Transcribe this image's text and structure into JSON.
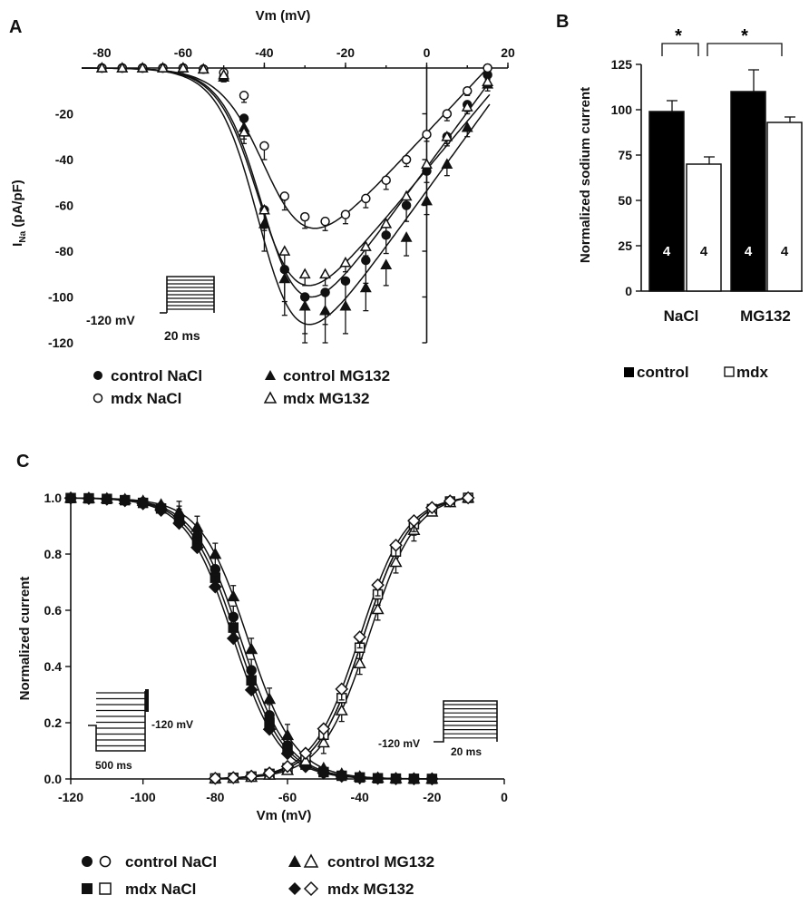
{
  "chart_data": [
    {
      "panel": "A",
      "type": "line",
      "xlabel": "Vm (mV)",
      "ylabel_main": "I",
      "ylabel_sub": "Na",
      "ylabel_unit": " (pA/pF)",
      "xlim": [
        -85,
        20
      ],
      "ylim": [
        -120,
        0
      ],
      "xticks": [
        -80,
        -60,
        -40,
        -20,
        0,
        20
      ],
      "yticks": [
        -20,
        -40,
        -60,
        -80,
        -100,
        -120
      ],
      "x": [
        -80,
        -75,
        -70,
        -65,
        -60,
        -55,
        -50,
        -45,
        -40,
        -35,
        -30,
        -25,
        -20,
        -15,
        -10,
        -5,
        0,
        5,
        10,
        15
      ],
      "series": [
        {
          "name": "control NaCl",
          "marker": "circle-filled",
          "values": [
            0,
            0,
            0,
            0,
            0,
            -0.5,
            -4,
            -22,
            -62,
            -88,
            -100,
            -98,
            -93,
            -84,
            -73,
            -60,
            -45,
            -30,
            -16,
            -3
          ],
          "err": [
            0,
            0,
            0,
            0,
            0,
            1,
            2,
            4,
            9,
            14,
            16,
            14,
            12,
            10,
            8,
            7,
            5,
            4,
            3,
            2
          ]
        },
        {
          "name": "mdx NaCl",
          "marker": "circle-open",
          "values": [
            0,
            0,
            0,
            0,
            0,
            -0.5,
            -2,
            -12,
            -34,
            -56,
            -65,
            -67,
            -64,
            -57,
            -49,
            -40,
            -29,
            -20,
            -10,
            0
          ],
          "err": [
            0,
            0,
            0,
            0,
            0,
            1,
            1,
            3,
            6,
            6,
            5,
            4,
            4,
            4,
            4,
            3,
            3,
            3,
            2,
            2
          ]
        },
        {
          "name": "control MG132",
          "marker": "triangle-filled",
          "values": [
            0,
            0,
            0,
            0,
            0,
            -0.5,
            -4,
            -26,
            -68,
            -92,
            -104,
            -106,
            -104,
            -96,
            -86,
            -74,
            -58,
            -42,
            -26,
            -7
          ],
          "err": [
            0,
            0,
            0,
            0,
            0,
            1,
            2,
            5,
            12,
            16,
            16,
            14,
            12,
            10,
            9,
            8,
            6,
            5,
            4,
            3
          ]
        },
        {
          "name": "mdx MG132",
          "marker": "triangle-open",
          "values": [
            0,
            0,
            0,
            0,
            0,
            -0.5,
            -3,
            -28,
            -62,
            -80,
            -90,
            -90,
            -85,
            -78,
            -68,
            -56,
            -42,
            -30,
            -17,
            -6
          ],
          "err": [
            0,
            0,
            0,
            0,
            0,
            1,
            2,
            5,
            8,
            8,
            5,
            5,
            4,
            4,
            4,
            4,
            4,
            3,
            3,
            2
          ]
        }
      ],
      "curves": {
        "control NaCl": {
          "vmin": -100,
          "vhalf": -39,
          "k": 5.0,
          "vrev": 18
        },
        "mdx NaCl": {
          "vmin": -70,
          "vhalf": -38,
          "k": 5.5,
          "vrev": 15
        },
        "control MG132": {
          "vmin": -112,
          "vhalf": -40,
          "k": 5.0,
          "vrev": 22
        },
        "mdx MG132": {
          "vmin": -95,
          "vhalf": -40,
          "k": 5.0,
          "vrev": 21
        }
      },
      "protocol": {
        "holding_label": "-120 mV",
        "duration_label": "20 ms"
      },
      "legend": [
        "control NaCl",
        "control MG132",
        "mdx NaCl",
        "mdx MG132"
      ]
    },
    {
      "panel": "B",
      "type": "bar",
      "ylabel": "Normalized sodium current",
      "ylim": [
        0,
        125
      ],
      "yticks": [
        0,
        25,
        50,
        75,
        100,
        125
      ],
      "categories": [
        "NaCl",
        "MG132"
      ],
      "series": [
        {
          "name": "control",
          "color": "#000000",
          "values": [
            99,
            110
          ],
          "err": [
            6,
            12
          ],
          "n": [
            "4",
            "4"
          ]
        },
        {
          "name": "mdx",
          "color": "#ffffff",
          "values": [
            70,
            93
          ],
          "err": [
            4,
            3
          ],
          "n": [
            "4",
            "4"
          ]
        }
      ],
      "significance": [
        "*",
        "*"
      ],
      "legend": [
        "control",
        "mdx"
      ]
    },
    {
      "panel": "C",
      "type": "line",
      "xlabel": "Vm (mV)",
      "ylabel": "Normalized current",
      "xlim": [
        -120,
        0
      ],
      "ylim": [
        0,
        1
      ],
      "xticks": [
        -120,
        -100,
        -80,
        -60,
        -40,
        -20,
        0
      ],
      "yticks": [
        "0.0",
        "0.2",
        "0.4",
        "0.6",
        "0.8",
        "1.0"
      ],
      "inactivation": {
        "x": [
          -120,
          -115,
          -110,
          -105,
          -100,
          -95,
          -90,
          -85,
          -80,
          -75,
          -70,
          -65,
          -60,
          -55,
          -50,
          -45,
          -40,
          -35,
          -30,
          -25,
          -20
        ],
        "series": [
          {
            "name": "control NaCl",
            "marker": "circle-filled",
            "vhalf": -73,
            "k": 6.5
          },
          {
            "name": "mdx NaCl",
            "marker": "square-filled",
            "vhalf": -74,
            "k": 6.5
          },
          {
            "name": "control MG132",
            "marker": "triangle-filled",
            "vhalf": -71,
            "k": 6.5
          },
          {
            "name": "mdx MG132",
            "marker": "diamond-filled",
            "vhalf": -75,
            "k": 6.5
          }
        ]
      },
      "activation": {
        "x": [
          -80,
          -75,
          -70,
          -65,
          -60,
          -55,
          -50,
          -45,
          -40,
          -35,
          -30,
          -25,
          -20,
          -15,
          -10
        ],
        "series": [
          {
            "name": "control NaCl",
            "marker": "circle-open",
            "vhalf": -39,
            "k": 6.5
          },
          {
            "name": "mdx NaCl",
            "marker": "square-open",
            "vhalf": -39,
            "k": 6.5
          },
          {
            "name": "control MG132",
            "marker": "triangle-open",
            "vhalf": -37.5,
            "k": 6.5
          },
          {
            "name": "mdx MG132",
            "marker": "diamond-open",
            "vhalf": -40,
            "k": 6.5
          }
        ]
      },
      "protocol_left": {
        "holding_label": "-120 mV",
        "duration_label": "500 ms"
      },
      "protocol_right": {
        "holding_label": "-120 mV",
        "duration_label": "20 ms"
      },
      "legend": [
        "control NaCl",
        "control MG132",
        "mdx NaCl",
        "mdx MG132"
      ]
    }
  ],
  "panels": {
    "a": "A",
    "b": "B",
    "c": "C"
  }
}
